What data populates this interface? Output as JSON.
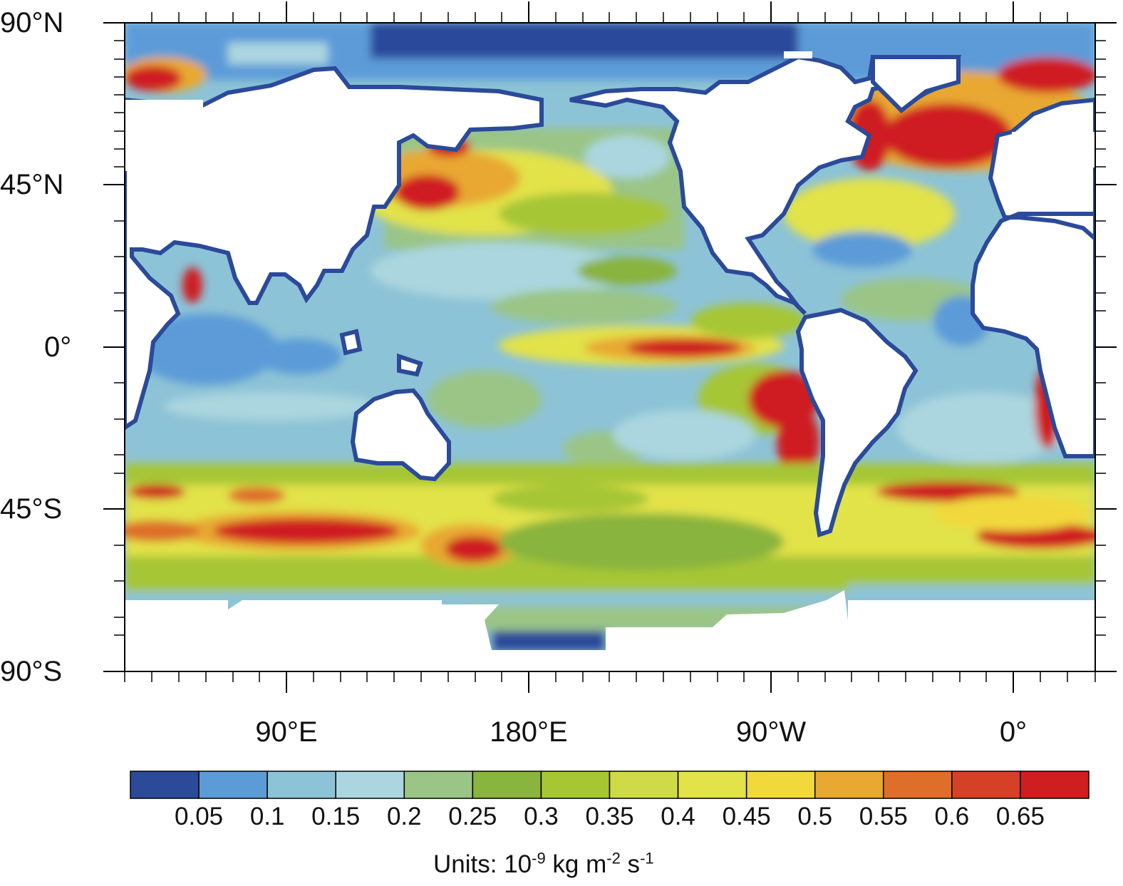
{
  "map": {
    "lat_labels": [
      "90°N",
      "45°N",
      "0°",
      "45°S",
      "90°S"
    ],
    "lon_labels": [
      "90°E",
      "180°E",
      "90°W",
      "0°"
    ]
  },
  "colorbar": {
    "colors": [
      "#2b4a9a",
      "#5b9bd8",
      "#8dc3d6",
      "#abd6df",
      "#9ac586",
      "#89b43d",
      "#a6c634",
      "#cfda48",
      "#e2e249",
      "#f1d93c",
      "#e8a832",
      "#de6e2a",
      "#d54027",
      "#cf1d20"
    ],
    "labels": [
      "0.05",
      "0.1",
      "0.15",
      "0.2",
      "0.25",
      "0.3",
      "0.35",
      "0.4",
      "0.45",
      "0.5",
      "0.55",
      "0.6",
      "0.65"
    ]
  },
  "units": {
    "prefix": "Units: 10",
    "exp1": "-9",
    "mid": " kg m",
    "exp2": "-2",
    "mid2": " s",
    "exp3": "-1"
  }
}
